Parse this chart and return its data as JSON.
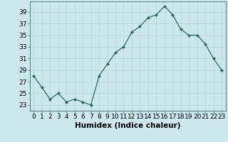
{
  "x": [
    0,
    1,
    2,
    3,
    4,
    5,
    6,
    7,
    8,
    9,
    10,
    11,
    12,
    13,
    14,
    15,
    16,
    17,
    18,
    19,
    20,
    21,
    22,
    23
  ],
  "y": [
    28,
    26,
    24,
    25,
    23.5,
    24,
    23.5,
    23,
    28,
    30,
    32,
    33,
    35.5,
    36.5,
    38,
    38.5,
    40,
    38.5,
    36,
    35,
    35,
    33.5,
    31,
    29
  ],
  "line_color": "#2d6b5e",
  "marker": "D",
  "marker_size": 2.0,
  "bg_color": "#cde8ec",
  "grid_color": "#b8d8dd",
  "xlabel": "Humidex (Indice chaleur)",
  "yticks": [
    23,
    25,
    27,
    29,
    31,
    33,
    35,
    37,
    39
  ],
  "xtick_labels": [
    "0",
    "1",
    "2",
    "3",
    "4",
    "5",
    "6",
    "7",
    "8",
    "9",
    "10",
    "11",
    "12",
    "13",
    "14",
    "15",
    "16",
    "17",
    "18",
    "19",
    "20",
    "21",
    "22",
    "23"
  ],
  "ylim": [
    22.0,
    40.8
  ],
  "xlim": [
    -0.5,
    23.5
  ],
  "tick_fontsize": 6.5,
  "xlabel_fontsize": 7.5
}
